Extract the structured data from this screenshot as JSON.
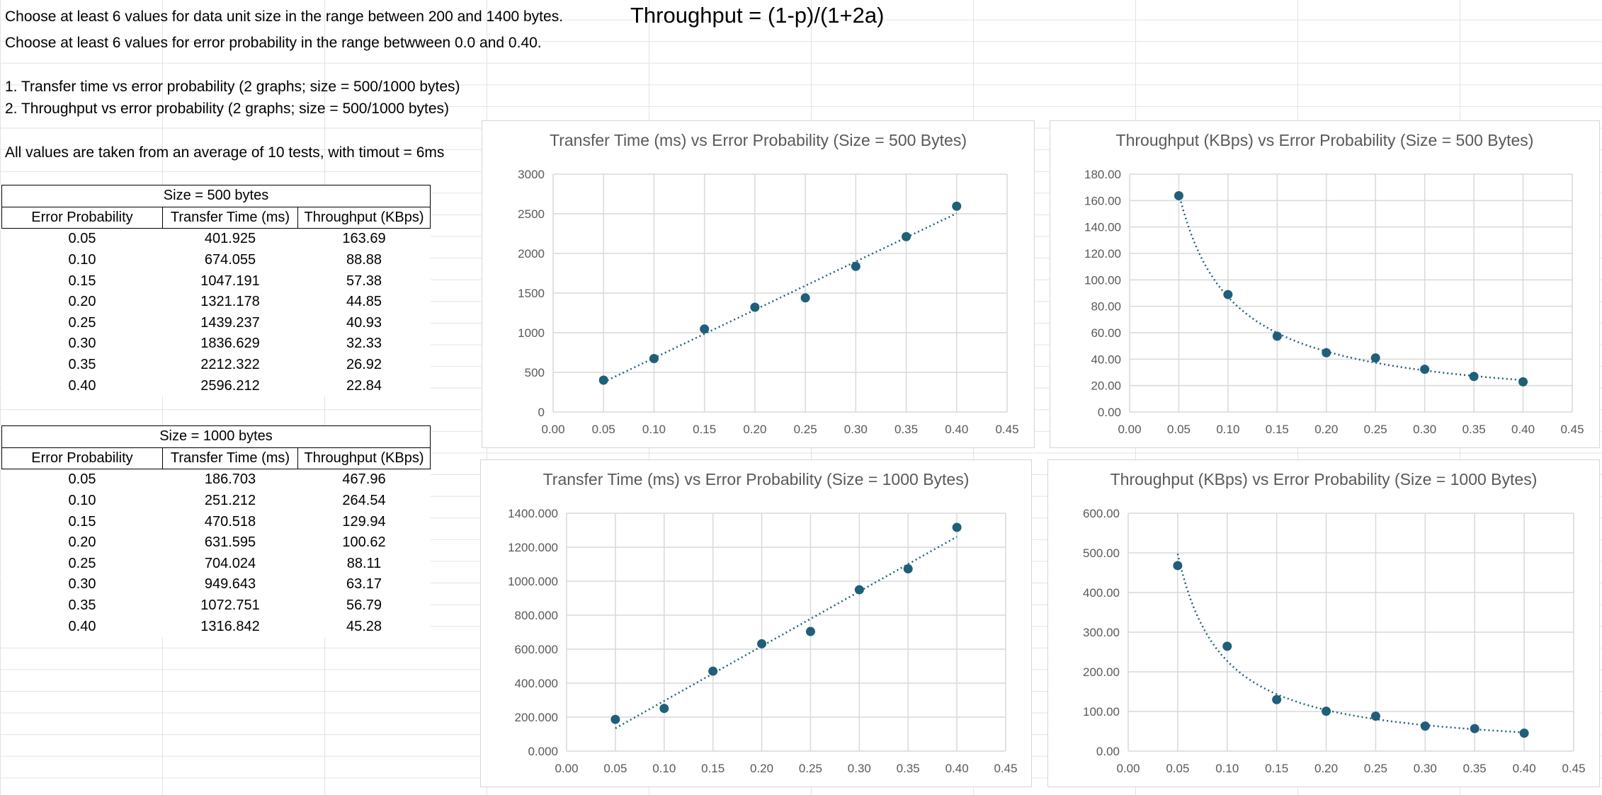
{
  "notes": {
    "line1": "Choose at least 6 values for data unit size in the range between 200 and 1400 bytes.",
    "line2": "Choose at least 6 values for error probability in the range betwween 0.0 and 0.40.",
    "line3": "1. Transfer time vs error probability (2 graphs; size = 500/1000 bytes)",
    "line4": "2. Throughput vs error probability (2 graphs; size = 500/1000 bytes)",
    "line5": "All values are taken from an average of 10 tests, with timout = 6ms",
    "formula": "Throughput = (1-p)/(1+2a)"
  },
  "tables": [
    {
      "caption": "Size = 500 bytes",
      "headers": [
        "Error Probability",
        "Transfer Time (ms)",
        "Throughput (KBps)"
      ],
      "rows": [
        [
          "0.05",
          "401.925",
          "163.69"
        ],
        [
          "0.10",
          "674.055",
          "88.88"
        ],
        [
          "0.15",
          "1047.191",
          "57.38"
        ],
        [
          "0.20",
          "1321.178",
          "44.85"
        ],
        [
          "0.25",
          "1439.237",
          "40.93"
        ],
        [
          "0.30",
          "1836.629",
          "32.33"
        ],
        [
          "0.35",
          "2212.322",
          "26.92"
        ],
        [
          "0.40",
          "2596.212",
          "22.84"
        ]
      ]
    },
    {
      "caption": "Size = 1000 bytes",
      "headers": [
        "Error Probability",
        "Transfer Time (ms)",
        "Throughput (KBps)"
      ],
      "rows": [
        [
          "0.05",
          "186.703",
          "467.96"
        ],
        [
          "0.10",
          "251.212",
          "264.54"
        ],
        [
          "0.15",
          "470.518",
          "129.94"
        ],
        [
          "0.20",
          "631.595",
          "100.62"
        ],
        [
          "0.25",
          "704.024",
          "88.11"
        ],
        [
          "0.30",
          "949.643",
          "63.17"
        ],
        [
          "0.35",
          "1072.751",
          "56.79"
        ],
        [
          "0.40",
          "1316.842",
          "45.28"
        ]
      ]
    }
  ],
  "chart_data": [
    {
      "type": "scatter",
      "title": "Transfer Time (ms) vs Error Probability (Size = 500 Bytes)",
      "trendline": "linear",
      "x": [
        0.05,
        0.1,
        0.15,
        0.2,
        0.25,
        0.3,
        0.35,
        0.4
      ],
      "y": [
        401.925,
        674.055,
        1047.191,
        1321.178,
        1439.237,
        1836.629,
        2212.322,
        2596.212
      ],
      "xlim": [
        0,
        0.45
      ],
      "ylim": [
        0,
        3000
      ],
      "xticks": [
        "0.00",
        "0.05",
        "0.10",
        "0.15",
        "0.20",
        "0.25",
        "0.30",
        "0.35",
        "0.40",
        "0.45"
      ],
      "yticks": [
        "0",
        "500",
        "1000",
        "1500",
        "2000",
        "2500",
        "3000"
      ],
      "grid": true,
      "color": "#1f5f7a"
    },
    {
      "type": "scatter",
      "title": "Throughput (KBps) vs Error Probability (Size = 500 Bytes)",
      "trendline": "power",
      "x": [
        0.05,
        0.1,
        0.15,
        0.2,
        0.25,
        0.3,
        0.35,
        0.4
      ],
      "y": [
        163.69,
        88.88,
        57.38,
        44.85,
        40.93,
        32.33,
        26.92,
        22.84
      ],
      "xlim": [
        0,
        0.45
      ],
      "ylim": [
        0,
        180
      ],
      "xticks": [
        "0.00",
        "0.05",
        "0.10",
        "0.15",
        "0.20",
        "0.25",
        "0.30",
        "0.35",
        "0.40",
        "0.45"
      ],
      "yticks": [
        "0.00",
        "20.00",
        "40.00",
        "60.00",
        "80.00",
        "100.00",
        "120.00",
        "140.00",
        "160.00",
        "180.00"
      ],
      "grid": true,
      "color": "#1f5f7a"
    },
    {
      "type": "scatter",
      "title": "Transfer Time (ms) vs Error Probability (Size = 1000 Bytes)",
      "trendline": "linear",
      "x": [
        0.05,
        0.1,
        0.15,
        0.2,
        0.25,
        0.3,
        0.35,
        0.4
      ],
      "y": [
        186.703,
        251.212,
        470.518,
        631.595,
        704.024,
        949.643,
        1072.751,
        1316.842
      ],
      "xlim": [
        0,
        0.45
      ],
      "ylim": [
        0,
        1400
      ],
      "xticks": [
        "0.00",
        "0.05",
        "0.10",
        "0.15",
        "0.20",
        "0.25",
        "0.30",
        "0.35",
        "0.40",
        "0.45"
      ],
      "yticks": [
        "0.000",
        "200.000",
        "400.000",
        "600.000",
        "800.000",
        "1000.000",
        "1200.000",
        "1400.000"
      ],
      "grid": true,
      "color": "#1f5f7a"
    },
    {
      "type": "scatter",
      "title": "Throughput (KBps) vs Error Probability (Size = 1000 Bytes)",
      "trendline": "power",
      "x": [
        0.05,
        0.1,
        0.15,
        0.2,
        0.25,
        0.3,
        0.35,
        0.4
      ],
      "y": [
        467.96,
        264.54,
        129.94,
        100.62,
        88.11,
        63.17,
        56.79,
        45.28
      ],
      "xlim": [
        0,
        0.45
      ],
      "ylim": [
        0,
        600
      ],
      "xticks": [
        "0.00",
        "0.05",
        "0.10",
        "0.15",
        "0.20",
        "0.25",
        "0.30",
        "0.35",
        "0.40",
        "0.45"
      ],
      "yticks": [
        "0.00",
        "100.00",
        "200.00",
        "300.00",
        "400.00",
        "500.00",
        "600.00"
      ],
      "grid": true,
      "color": "#1f5f7a"
    }
  ]
}
